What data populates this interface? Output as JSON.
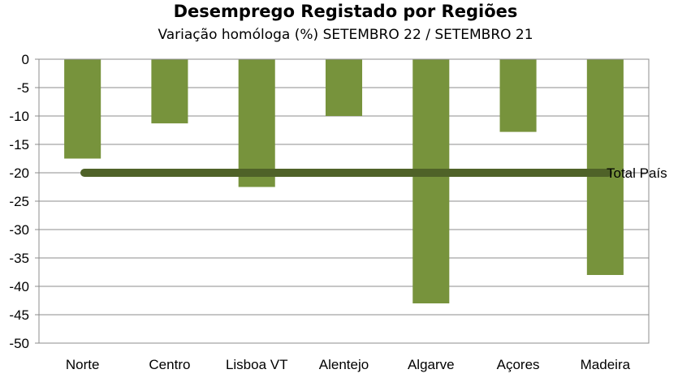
{
  "chart_data": {
    "type": "bar",
    "title": "Desemprego Registado por Regiões",
    "subtitle": "Variação homóloga (%) SETEMBRO 22 / SETEMBRO 21",
    "categories": [
      "Norte",
      "Centro",
      "Lisboa VT",
      "Alentejo",
      "Algarve",
      "Açores",
      "Madeira"
    ],
    "values": [
      -17.5,
      -11.3,
      -22.5,
      -10,
      -43,
      -12.8,
      -38
    ],
    "ylim": [
      -50,
      0
    ],
    "yticks": [
      0,
      -5,
      -10,
      -15,
      -20,
      -25,
      -30,
      -35,
      -40,
      -45,
      -50
    ],
    "grid": true,
    "bar_color": "#77933c",
    "reference_line": {
      "label": "Total  País",
      "value": -20,
      "color": "#4f6228"
    }
  }
}
